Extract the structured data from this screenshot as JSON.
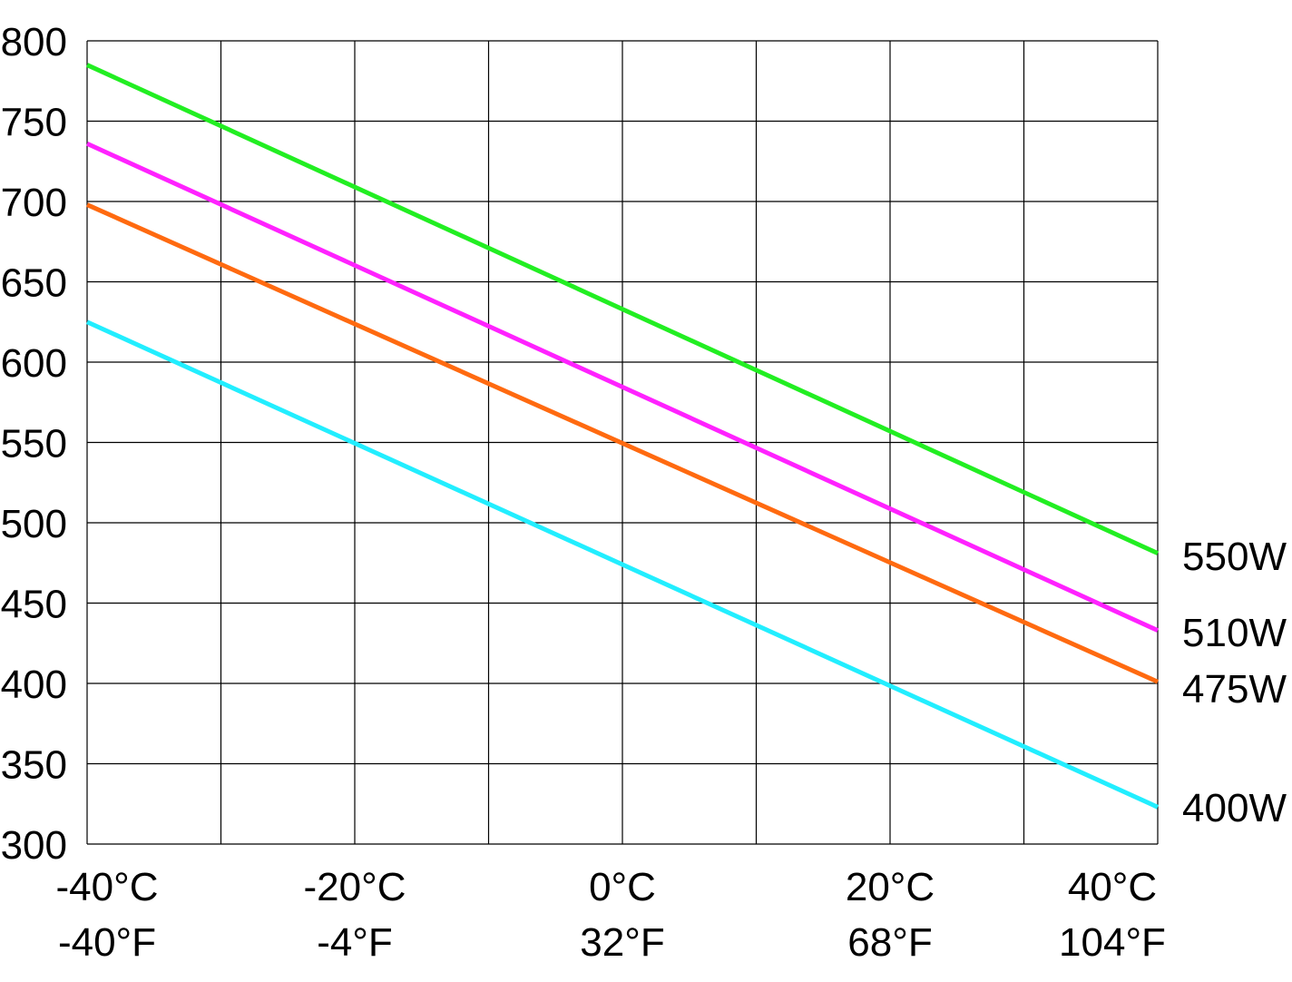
{
  "chart_data": {
    "type": "line",
    "title": "",
    "xlabel": "",
    "ylabel": "",
    "xlim": [
      -40,
      40
    ],
    "ylim": [
      300,
      800
    ],
    "grid": true,
    "y_ticks": [
      {
        "value": 300,
        "label": "300"
      },
      {
        "value": 350,
        "label": "350"
      },
      {
        "value": 400,
        "label": "400"
      },
      {
        "value": 450,
        "label": "450"
      },
      {
        "value": 500,
        "label": "500"
      },
      {
        "value": 550,
        "label": "550"
      },
      {
        "value": 600,
        "label": "600"
      },
      {
        "value": 650,
        "label": "650"
      },
      {
        "value": 700,
        "label": "700"
      },
      {
        "value": 750,
        "label": "750"
      },
      {
        "value": 800,
        "label": "800"
      }
    ],
    "x_gridlines": [
      -40,
      -30,
      -20,
      -10,
      0,
      10,
      20,
      30,
      40
    ],
    "x_ticks": [
      {
        "value": -40,
        "celsius": "-40°C",
        "fahrenheit": "-40°F"
      },
      {
        "value": -20,
        "celsius": "-20°C",
        "fahrenheit": "-4°F"
      },
      {
        "value": 0,
        "celsius": "0°C",
        "fahrenheit": "32°F"
      },
      {
        "value": 20,
        "celsius": "20°C",
        "fahrenheit": "68°F"
      },
      {
        "value": 40,
        "celsius": "40°C",
        "fahrenheit": "104°F"
      }
    ],
    "series": [
      {
        "name": "550W",
        "color": "#22ee22",
        "x": [
          -40,
          40
        ],
        "y": [
          785,
          481
        ]
      },
      {
        "name": "510W",
        "color": "#ff22ff",
        "x": [
          -40,
          40
        ],
        "y": [
          736,
          433
        ]
      },
      {
        "name": "475W",
        "color": "#ff6a10",
        "x": [
          -40,
          40
        ],
        "y": [
          698,
          401
        ]
      },
      {
        "name": "400W",
        "color": "#22eeff",
        "x": [
          -40,
          40
        ],
        "y": [
          625,
          323
        ]
      }
    ]
  }
}
